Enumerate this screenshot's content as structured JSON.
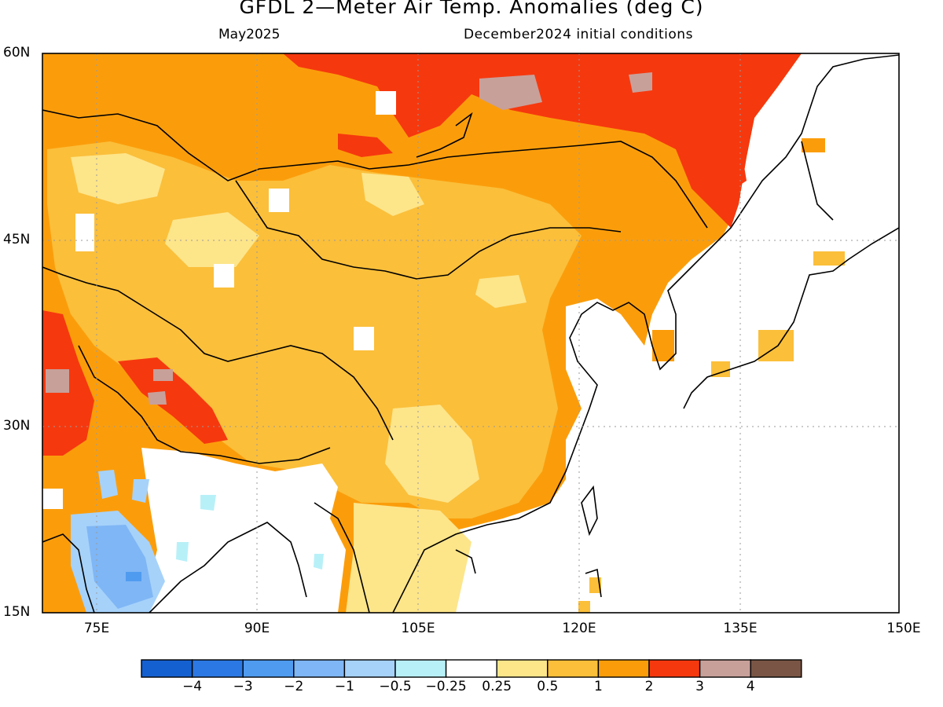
{
  "header": {
    "title": "GFDL 2—Meter Air Temp. Anomalies (deg C)",
    "valid_month": "May2025",
    "initial_conditions": "December2024 initial conditions"
  },
  "map": {
    "region": "East Asia",
    "lat_labels": [
      "60N",
      "45N",
      "30N",
      "15N"
    ],
    "lon_labels": [
      "75E",
      "90E",
      "105E",
      "120E",
      "135E",
      "150E"
    ],
    "grid": "dotted"
  },
  "colorbar": {
    "labels": [
      "−4",
      "−3",
      "−2",
      "−1",
      "−0.5",
      "−0.25",
      "0.25",
      "0.5",
      "1",
      "2",
      "3",
      "4"
    ],
    "colors": [
      "#1560d0",
      "#2b78e4",
      "#4f9bf0",
      "#7fb6f5",
      "#a6d2fa",
      "#b8f0f8",
      "#ffffff",
      "#fde58a",
      "#fbbf3a",
      "#fb9d0b",
      "#f6380e",
      "#c8a09a",
      "#7a5545"
    ]
  }
}
